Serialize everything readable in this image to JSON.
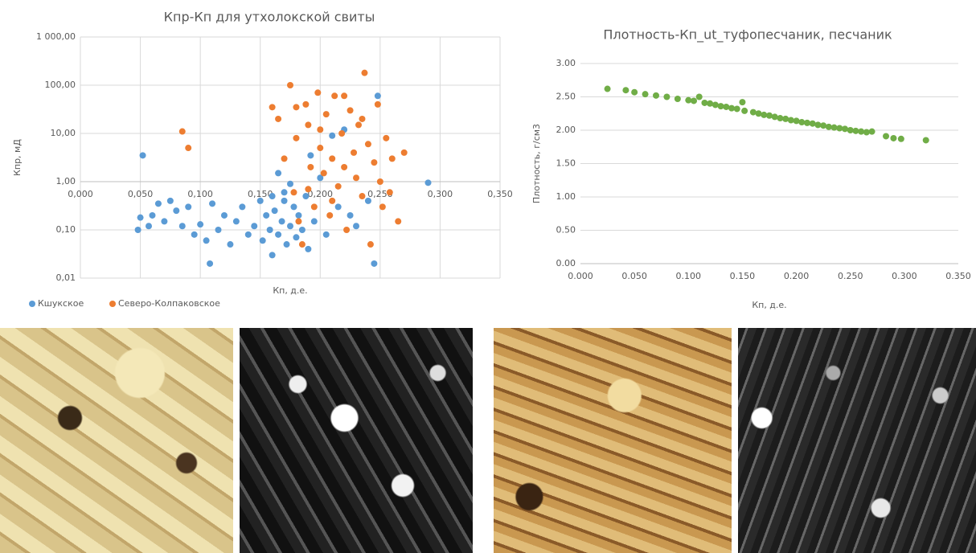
{
  "chart_data": [
    {
      "type": "scatter",
      "title": "Кпр-Кп для утхолокской свиты",
      "ylabel": "Кпр, мД",
      "xlabel": "Кп, д.е.",
      "log_y": true,
      "grid": true,
      "legend": "bottom-left",
      "x_axis_at": 1,
      "xlim": [
        0,
        0.35
      ],
      "ylim": [
        0.01,
        1000
      ],
      "xticks": [
        {
          "value": 0,
          "label": "0,000"
        },
        {
          "value": 0.05,
          "label": "0,050"
        },
        {
          "value": 0.1,
          "label": "0,100"
        },
        {
          "value": 0.15,
          "label": "0,150"
        },
        {
          "value": 0.2,
          "label": "0,200"
        },
        {
          "value": 0.25,
          "label": "0,250"
        },
        {
          "value": 0.3,
          "label": "0,300"
        },
        {
          "value": 0.35,
          "label": "0,350"
        }
      ],
      "yticks": [
        {
          "value": 0.01,
          "label": "0,01"
        },
        {
          "value": 0.1,
          "label": "0,10"
        },
        {
          "value": 1,
          "label": "1,00"
        },
        {
          "value": 10,
          "label": "10,00"
        },
        {
          "value": 100,
          "label": "100,00"
        },
        {
          "value": 1000,
          "label": "1 000,00"
        }
      ],
      "series": [
        {
          "name": "Кшукское",
          "color": "#5b9bd5",
          "x": [
            0.052,
            0.048,
            0.05,
            0.057,
            0.06,
            0.065,
            0.07,
            0.075,
            0.08,
            0.085,
            0.09,
            0.095,
            0.1,
            0.105,
            0.108,
            0.11,
            0.115,
            0.12,
            0.125,
            0.13,
            0.135,
            0.14,
            0.145,
            0.15,
            0.152,
            0.155,
            0.158,
            0.16,
            0.162,
            0.165,
            0.168,
            0.17,
            0.172,
            0.175,
            0.178,
            0.18,
            0.182,
            0.185,
            0.188,
            0.19,
            0.192,
            0.195,
            0.2,
            0.205,
            0.21,
            0.215,
            0.22,
            0.225,
            0.23,
            0.24,
            0.245,
            0.248,
            0.29,
            0.165,
            0.17,
            0.16,
            0.175
          ],
          "values": [
            3.5,
            0.1,
            0.18,
            0.12,
            0.2,
            0.35,
            0.15,
            0.4,
            0.25,
            0.12,
            0.3,
            0.08,
            0.13,
            0.06,
            0.02,
            0.35,
            0.1,
            0.2,
            0.05,
            0.15,
            0.3,
            0.08,
            0.12,
            0.4,
            0.06,
            0.2,
            0.1,
            0.03,
            0.25,
            0.08,
            0.15,
            0.4,
            0.05,
            0.12,
            0.3,
            0.07,
            0.2,
            0.1,
            0.5,
            0.04,
            3.5,
            0.15,
            1.2,
            0.08,
            9,
            0.3,
            12,
            0.2,
            0.12,
            0.4,
            0.02,
            60,
            0.95,
            1.5,
            0.6,
            0.5,
            0.9
          ]
        },
        {
          "name": "Северо-Колпаковское",
          "color": "#ed7d31",
          "x": [
            0.085,
            0.09,
            0.16,
            0.165,
            0.17,
            0.175,
            0.178,
            0.18,
            0.182,
            0.185,
            0.188,
            0.19,
            0.192,
            0.195,
            0.198,
            0.2,
            0.203,
            0.205,
            0.208,
            0.21,
            0.212,
            0.215,
            0.218,
            0.22,
            0.222,
            0.225,
            0.228,
            0.23,
            0.232,
            0.235,
            0.237,
            0.24,
            0.242,
            0.245,
            0.248,
            0.25,
            0.252,
            0.255,
            0.258,
            0.26,
            0.265,
            0.27,
            0.235,
            0.22,
            0.2,
            0.21,
            0.19,
            0.18
          ],
          "values": [
            11,
            5,
            35,
            20,
            3,
            100,
            0.6,
            8,
            0.15,
            0.05,
            40,
            15,
            2,
            0.3,
            70,
            5,
            1.5,
            25,
            0.2,
            3,
            60,
            0.8,
            10,
            2,
            0.1,
            30,
            4,
            1.2,
            15,
            0.5,
            180,
            6,
            0.05,
            2.5,
            40,
            1,
            0.3,
            8,
            0.6,
            3,
            0.15,
            4,
            20,
            60,
            12,
            0.4,
            0.7,
            35
          ]
        }
      ]
    },
    {
      "type": "scatter",
      "title": "Плотность-Кп_ut_туфопесчаник, песчаник",
      "ylabel": "Плотность, г/см3",
      "xlabel": "Кп, д.е.",
      "grid": true,
      "xlim": [
        0,
        0.35
      ],
      "ylim": [
        0,
        3
      ],
      "xticks": [
        {
          "value": 0,
          "label": "0.000"
        },
        {
          "value": 0.05,
          "label": "0.050"
        },
        {
          "value": 0.1,
          "label": "0.100"
        },
        {
          "value": 0.15,
          "label": "0.150"
        },
        {
          "value": 0.2,
          "label": "0.200"
        },
        {
          "value": 0.25,
          "label": "0.250"
        },
        {
          "value": 0.3,
          "label": "0.300"
        },
        {
          "value": 0.35,
          "label": "0.350"
        }
      ],
      "yticks": [
        {
          "value": 0,
          "label": "0.00"
        },
        {
          "value": 0.5,
          "label": "0.50"
        },
        {
          "value": 1,
          "label": "1.00"
        },
        {
          "value": 1.5,
          "label": "1.50"
        },
        {
          "value": 2,
          "label": "2.00"
        },
        {
          "value": 2.5,
          "label": "2.50"
        },
        {
          "value": 3,
          "label": "3.00"
        }
      ],
      "series": [
        {
          "color": "#70ad47",
          "x": [
            0.025,
            0.042,
            0.05,
            0.06,
            0.07,
            0.08,
            0.09,
            0.1,
            0.105,
            0.11,
            0.115,
            0.12,
            0.125,
            0.13,
            0.135,
            0.14,
            0.145,
            0.15,
            0.152,
            0.16,
            0.165,
            0.17,
            0.175,
            0.18,
            0.185,
            0.19,
            0.195,
            0.2,
            0.205,
            0.21,
            0.215,
            0.22,
            0.225,
            0.23,
            0.235,
            0.24,
            0.245,
            0.25,
            0.255,
            0.26,
            0.265,
            0.27,
            0.283,
            0.29,
            0.297,
            0.32
          ],
          "values": [
            2.62,
            2.6,
            2.57,
            2.54,
            2.52,
            2.5,
            2.47,
            2.45,
            2.44,
            2.5,
            2.41,
            2.4,
            2.38,
            2.36,
            2.35,
            2.33,
            2.32,
            2.42,
            2.29,
            2.27,
            2.25,
            2.23,
            2.22,
            2.2,
            2.18,
            2.17,
            2.15,
            2.14,
            2.12,
            2.11,
            2.1,
            2.08,
            2.07,
            2.05,
            2.04,
            2.03,
            2.02,
            2.0,
            1.99,
            1.98,
            1.97,
            1.98,
            1.91,
            1.88,
            1.87,
            1.85
          ]
        }
      ]
    }
  ]
}
